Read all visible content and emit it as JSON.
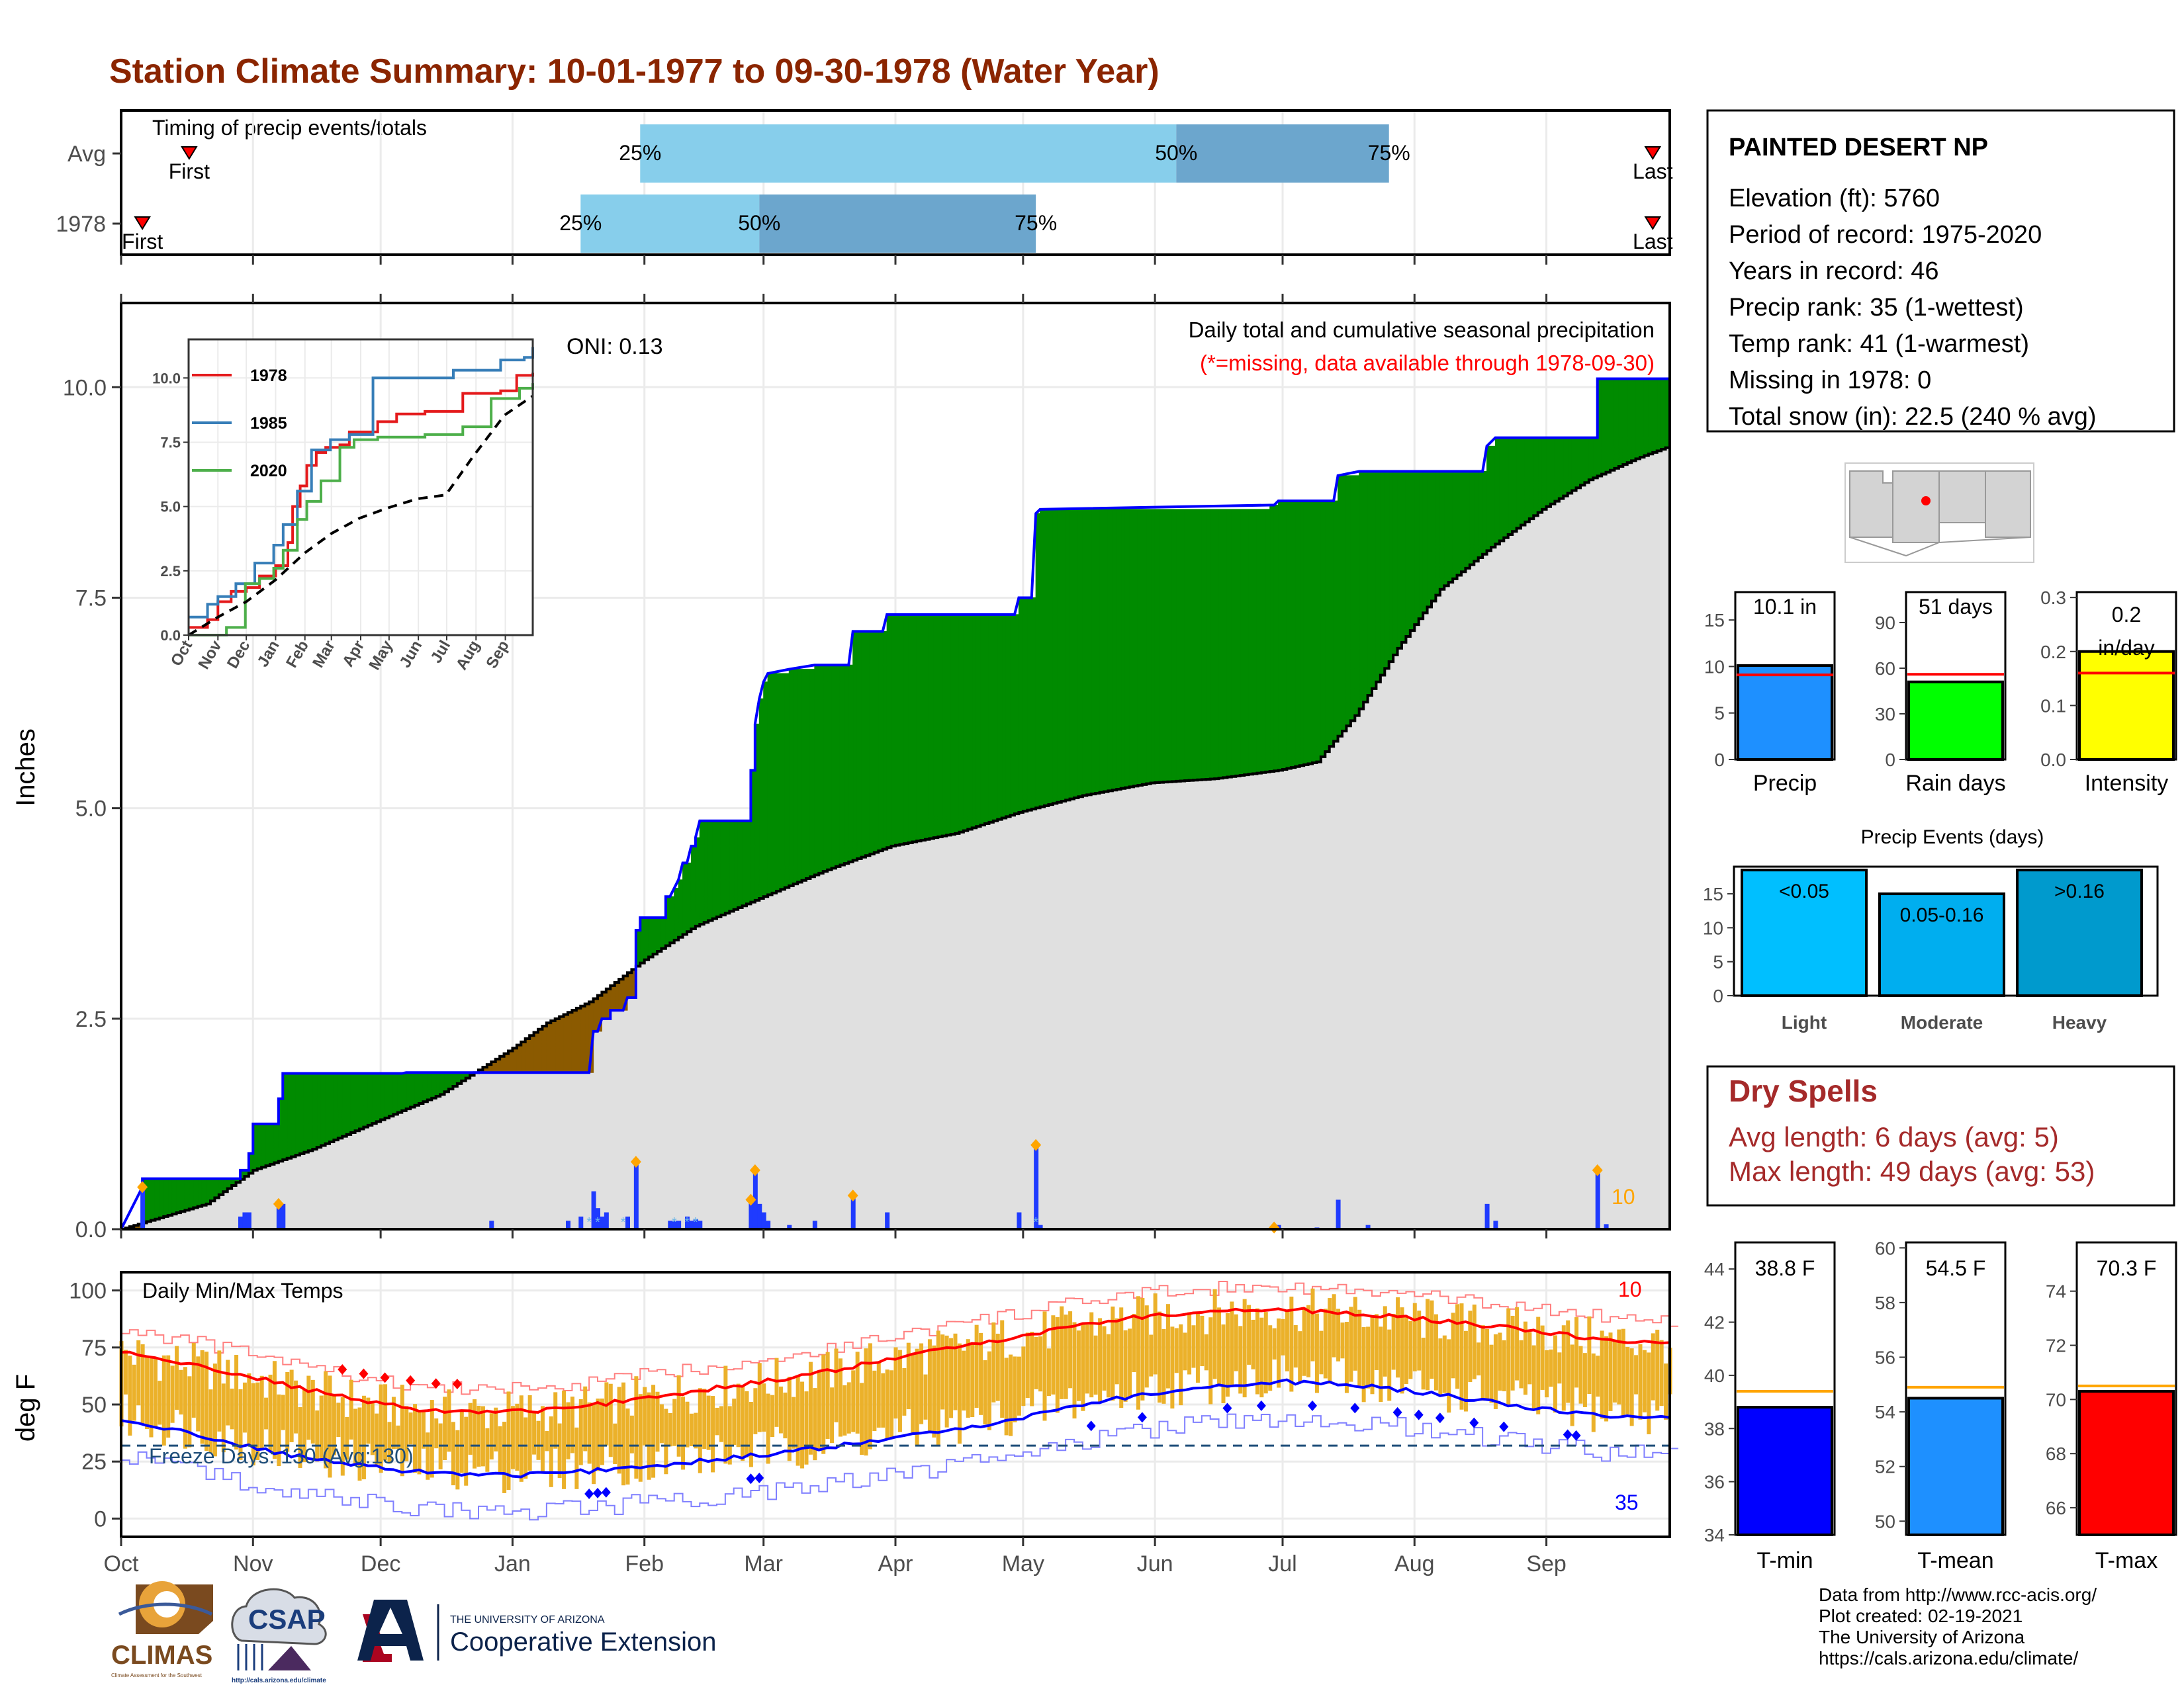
{
  "page": {
    "title": "Station Climate Summary: 10-01-1977 to 09-30-1978 (Water Year)",
    "title_color": "#8B2500",
    "footer_lines": [
      "Data from http://www.rcc-acis.org/",
      "Plot created: 02-19-2021",
      "The University of Arizona",
      "https://cals.arizona.edu/climate/"
    ],
    "logos": {
      "climas": "CLIMAS",
      "climas_sub": "Climate Assessment for the Southwest",
      "csap": "CSAP",
      "csap_url": "http://cals.arizona.edu/climate",
      "ua_small": "THE UNIVERSITY OF ARIZONA",
      "ua_big": "Cooperative Extension"
    }
  },
  "colors": {
    "light_blue": "#87CEEB",
    "mid_blue": "#6CA6CD",
    "green": "#008B00",
    "brown": "#8B5A00",
    "gray_fill": "#E0E0E0",
    "precip_blue": "#1F3BFF",
    "orange": "#FFA500",
    "temp_bar": "#EBB12A",
    "red": "#FF0000",
    "blue": "#0000FF"
  },
  "month_labels": [
    "Oct",
    "Nov",
    "Dec",
    "Jan",
    "Feb",
    "Mar",
    "Apr",
    "May",
    "Jun",
    "Jul",
    "Aug",
    "Sep"
  ],
  "timing": {
    "label": "Timing of precip events/totals",
    "rows": [
      {
        "name": "Avg",
        "first_label": "First",
        "last_label": "Last",
        "first_day": 16,
        "last_day": 360,
        "q25_day": 122,
        "q50_day": 248,
        "q75_day": 298
      },
      {
        "name": "1978",
        "first_label": "First",
        "last_label": "Last",
        "first_day": 5,
        "last_day": 360,
        "q25_day": 108,
        "q50_day": 150,
        "q75_day": 215
      }
    ],
    "pct_labels": [
      "25%",
      "50%",
      "75%"
    ]
  },
  "precip": {
    "ylabel": "Inches",
    "yticks": [
      "0.0",
      "2.5",
      "5.0",
      "7.5",
      "10.0"
    ],
    "ylim": [
      0,
      11
    ],
    "oni_label": "ONI: 0.13",
    "header": "Daily total and cumulative seasonal precipitation",
    "missing_note": "(*=missing, data available through 1978-09-30)",
    "extreme_count": "10",
    "cumulative_1978": [
      [
        0,
        0
      ],
      [
        5,
        0.5
      ],
      [
        5,
        0.6
      ],
      [
        28,
        0.6
      ],
      [
        28,
        0.7
      ],
      [
        30,
        0.7
      ],
      [
        30,
        0.9
      ],
      [
        31,
        0.9
      ],
      [
        31,
        1.25
      ],
      [
        37,
        1.25
      ],
      [
        37,
        1.55
      ],
      [
        38,
        1.55
      ],
      [
        38,
        1.85
      ],
      [
        66,
        1.85
      ],
      [
        67,
        1.86
      ],
      [
        108,
        1.86
      ],
      [
        110,
        1.86
      ],
      [
        111,
        2.35
      ],
      [
        112,
        2.35
      ],
      [
        113,
        2.5
      ],
      [
        115,
        2.5
      ],
      [
        115,
        2.6
      ],
      [
        118,
        2.6
      ],
      [
        119,
        2.75
      ],
      [
        121,
        2.75
      ],
      [
        121,
        3.55
      ],
      [
        122,
        3.55
      ],
      [
        122,
        3.7
      ],
      [
        128,
        3.7
      ],
      [
        128,
        3.95
      ],
      [
        129,
        3.95
      ],
      [
        130,
        4.05
      ],
      [
        131,
        4.15
      ],
      [
        132,
        4.35
      ],
      [
        133,
        4.35
      ],
      [
        134,
        4.55
      ],
      [
        135,
        4.55
      ],
      [
        135,
        4.65
      ],
      [
        136,
        4.85
      ],
      [
        148,
        4.85
      ],
      [
        148,
        5.45
      ],
      [
        149,
        5.45
      ],
      [
        149,
        6.0
      ],
      [
        150,
        6.3
      ],
      [
        151,
        6.5
      ],
      [
        152,
        6.6
      ],
      [
        157,
        6.65
      ],
      [
        163,
        6.7
      ],
      [
        171,
        6.7
      ],
      [
        172,
        7.1
      ],
      [
        179,
        7.1
      ],
      [
        180,
        7.3
      ],
      [
        210,
        7.3
      ],
      [
        211,
        7.5
      ],
      [
        214,
        7.5
      ],
      [
        215,
        8.5
      ],
      [
        216,
        8.55
      ],
      [
        270,
        8.6
      ],
      [
        271,
        8.6
      ],
      [
        272,
        8.65
      ],
      [
        285,
        8.65
      ],
      [
        286,
        8.95
      ],
      [
        291,
        9.0
      ],
      [
        320,
        9.0
      ],
      [
        321,
        9.3
      ],
      [
        323,
        9.4
      ],
      [
        342,
        9.4
      ],
      [
        347,
        9.4
      ],
      [
        347,
        10.1
      ],
      [
        360,
        10.1
      ],
      [
        364,
        10.1
      ]
    ],
    "average_cumulative": [
      [
        0,
        0
      ],
      [
        10,
        0.15
      ],
      [
        20,
        0.3
      ],
      [
        31,
        0.7
      ],
      [
        45,
        0.95
      ],
      [
        61,
        1.3
      ],
      [
        75,
        1.6
      ],
      [
        92,
        2.15
      ],
      [
        100,
        2.45
      ],
      [
        110,
        2.7
      ],
      [
        123,
        3.2
      ],
      [
        135,
        3.6
      ],
      [
        151,
        3.95
      ],
      [
        165,
        4.25
      ],
      [
        181,
        4.55
      ],
      [
        196,
        4.7
      ],
      [
        211,
        4.95
      ],
      [
        226,
        5.15
      ],
      [
        242,
        5.3
      ],
      [
        257,
        5.35
      ],
      [
        272,
        5.45
      ],
      [
        281,
        5.55
      ],
      [
        290,
        6.1
      ],
      [
        300,
        6.9
      ],
      [
        310,
        7.6
      ],
      [
        322,
        8.1
      ],
      [
        334,
        8.55
      ],
      [
        345,
        8.9
      ],
      [
        356,
        9.15
      ],
      [
        364,
        9.3
      ]
    ],
    "daily": [
      [
        5,
        0.5
      ],
      [
        28,
        0.15
      ],
      [
        29,
        0.2
      ],
      [
        30,
        0.2
      ],
      [
        37,
        0.3
      ],
      [
        38,
        0.3
      ],
      [
        87,
        0.1
      ],
      [
        105,
        0.1
      ],
      [
        108,
        0.15
      ],
      [
        111,
        0.45
      ],
      [
        112,
        0.25
      ],
      [
        113,
        0.15
      ],
      [
        114,
        0.2
      ],
      [
        119,
        0.15
      ],
      [
        121,
        0.8
      ],
      [
        129,
        0.1
      ],
      [
        130,
        0.1
      ],
      [
        131,
        0.1
      ],
      [
        133,
        0.15
      ],
      [
        134,
        0.1
      ],
      [
        135,
        0.12
      ],
      [
        136,
        0.1
      ],
      [
        148,
        0.35
      ],
      [
        149,
        0.7
      ],
      [
        150,
        0.3
      ],
      [
        151,
        0.2
      ],
      [
        152,
        0.1
      ],
      [
        157,
        0.05
      ],
      [
        163,
        0.1
      ],
      [
        172,
        0.4
      ],
      [
        180,
        0.2
      ],
      [
        211,
        0.2
      ],
      [
        215,
        1.0
      ],
      [
        216,
        0.05
      ],
      [
        272,
        0.05
      ],
      [
        281,
        0.02
      ],
      [
        286,
        0.35
      ],
      [
        293,
        0.05
      ],
      [
        321,
        0.3
      ],
      [
        323,
        0.1
      ],
      [
        347,
        0.7
      ],
      [
        349,
        0.06
      ]
    ],
    "extreme_days": [
      5,
      37,
      121,
      148,
      149,
      172,
      215,
      271,
      347
    ],
    "trace_days": [
      110,
      112,
      118,
      130,
      133,
      135,
      215
    ]
  },
  "inset": {
    "yticks": [
      "0.0",
      "2.5",
      "5.0",
      "7.5",
      "10.0"
    ],
    "series": [
      {
        "name": "1978",
        "color": "#E41A1C",
        "values": [
          [
            0,
            0.3
          ],
          [
            20,
            0.6
          ],
          [
            31,
            1.3
          ],
          [
            45,
            1.7
          ],
          [
            61,
            1.85
          ],
          [
            75,
            2.3
          ],
          [
            92,
            2.7
          ],
          [
            105,
            3.6
          ],
          [
            110,
            5.0
          ],
          [
            118,
            5.8
          ],
          [
            125,
            6.6
          ],
          [
            135,
            7.1
          ],
          [
            145,
            7.3
          ],
          [
            160,
            7.4
          ],
          [
            170,
            7.9
          ],
          [
            200,
            8.3
          ],
          [
            220,
            8.6
          ],
          [
            250,
            8.7
          ],
          [
            290,
            9.4
          ],
          [
            330,
            9.5
          ],
          [
            347,
            10.1
          ],
          [
            364,
            10.2
          ]
        ]
      },
      {
        "name": "1985",
        "color": "#377EB8",
        "values": [
          [
            0,
            0.7
          ],
          [
            20,
            1.2
          ],
          [
            31,
            1.5
          ],
          [
            50,
            2.0
          ],
          [
            70,
            2.8
          ],
          [
            90,
            3.5
          ],
          [
            100,
            4.3
          ],
          [
            115,
            5.6
          ],
          [
            130,
            7.2
          ],
          [
            150,
            7.6
          ],
          [
            170,
            7.8
          ],
          [
            195,
            10.0
          ],
          [
            230,
            10.0
          ],
          [
            280,
            10.3
          ],
          [
            330,
            10.7
          ],
          [
            355,
            10.8
          ],
          [
            364,
            11.2
          ]
        ]
      },
      {
        "name": "2020",
        "color": "#4DAF4A",
        "values": [
          [
            0,
            0.0
          ],
          [
            25,
            0.0
          ],
          [
            40,
            0.3
          ],
          [
            60,
            2.0
          ],
          [
            75,
            2.2
          ],
          [
            90,
            2.6
          ],
          [
            100,
            3.3
          ],
          [
            115,
            4.5
          ],
          [
            125,
            5.2
          ],
          [
            140,
            6.0
          ],
          [
            160,
            7.3
          ],
          [
            175,
            7.6
          ],
          [
            200,
            7.7
          ],
          [
            250,
            7.8
          ],
          [
            290,
            8.1
          ],
          [
            320,
            9.2
          ],
          [
            350,
            9.6
          ],
          [
            364,
            9.8
          ]
        ]
      }
    ],
    "average": [
      [
        0,
        0
      ],
      [
        31,
        0.7
      ],
      [
        61,
        1.3
      ],
      [
        92,
        2.15
      ],
      [
        123,
        3.2
      ],
      [
        151,
        3.95
      ],
      [
        181,
        4.55
      ],
      [
        211,
        4.95
      ],
      [
        242,
        5.3
      ],
      [
        272,
        5.45
      ],
      [
        300,
        6.9
      ],
      [
        334,
        8.55
      ],
      [
        364,
        9.3
      ]
    ]
  },
  "temps": {
    "ylabel": "deg F",
    "yticks": [
      "0",
      "25",
      "50",
      "75",
      "100"
    ],
    "ylim": [
      -8,
      108
    ],
    "panel_label": "Daily Min/Max Temps",
    "freeze_label": "Freeze Days: 130 (Avg:130)",
    "max_extreme_count": "10",
    "min_extreme_count": "35",
    "avg_max": [
      [
        0,
        73
      ],
      [
        15,
        68
      ],
      [
        31,
        62
      ],
      [
        45,
        56
      ],
      [
        61,
        50
      ],
      [
        75,
        47
      ],
      [
        92,
        47
      ],
      [
        105,
        48
      ],
      [
        123,
        53
      ],
      [
        135,
        56
      ],
      [
        151,
        60
      ],
      [
        165,
        64
      ],
      [
        181,
        70
      ],
      [
        196,
        75
      ],
      [
        211,
        80
      ],
      [
        226,
        85
      ],
      [
        242,
        89
      ],
      [
        257,
        91
      ],
      [
        272,
        92
      ],
      [
        287,
        90
      ],
      [
        303,
        88
      ],
      [
        318,
        85
      ],
      [
        334,
        82
      ],
      [
        349,
        78
      ],
      [
        364,
        77
      ]
    ],
    "avg_min": [
      [
        0,
        43
      ],
      [
        15,
        38
      ],
      [
        31,
        31
      ],
      [
        45,
        26
      ],
      [
        61,
        22
      ],
      [
        75,
        20
      ],
      [
        92,
        19
      ],
      [
        105,
        20
      ],
      [
        123,
        23
      ],
      [
        135,
        25
      ],
      [
        151,
        28
      ],
      [
        165,
        31
      ],
      [
        181,
        35
      ],
      [
        196,
        39
      ],
      [
        211,
        44
      ],
      [
        226,
        50
      ],
      [
        242,
        55
      ],
      [
        257,
        58
      ],
      [
        272,
        60
      ],
      [
        287,
        59
      ],
      [
        303,
        56
      ],
      [
        318,
        52
      ],
      [
        334,
        48
      ],
      [
        349,
        45
      ],
      [
        364,
        44
      ]
    ],
    "max_env_offsets": 10,
    "min_env_offsets": -16,
    "freeze_line": 32
  },
  "station": {
    "name": "PAINTED DESERT NP",
    "lines": [
      "Elevation (ft): 5760",
      "Period of record: 1975-2020",
      "Years in record: 46",
      "Precip rank: 35 (1-wettest)",
      "Temp rank: 41 (1-warmest)",
      "Missing in 1978: 0",
      "Total snow (in): 22.5 (240 % avg)"
    ]
  },
  "mini_bars": [
    {
      "label": "Precip",
      "value_label": "10.1 in",
      "value": 10.1,
      "avg": 9.1,
      "ymax": 18,
      "yticks": [
        "0",
        "5",
        "10",
        "15"
      ],
      "ytick_vals": [
        0,
        5,
        10,
        15
      ],
      "color": "#1E90FF"
    },
    {
      "label": "Rain days",
      "value_label": "51 days",
      "value": 51,
      "avg": 56,
      "ymax": 110,
      "yticks": [
        "0",
        "30",
        "60",
        "90"
      ],
      "ytick_vals": [
        0,
        30,
        60,
        90
      ],
      "color": "#00FF00"
    },
    {
      "label": "Intensity",
      "value_label": "0.2 in/day",
      "value": 0.2,
      "avg": 0.16,
      "ymax": 0.31,
      "yticks": [
        "0.0",
        "0.1",
        "0.2",
        "0.3"
      ],
      "ytick_vals": [
        0,
        0.1,
        0.2,
        0.3
      ],
      "color": "#FFFF00"
    }
  ],
  "events": {
    "title": "Precip Events (days)",
    "ymax": 19,
    "yticks": [
      "0",
      "5",
      "10",
      "15"
    ],
    "ytick_vals": [
      0,
      5,
      10,
      15
    ],
    "bars": [
      {
        "label": "Light",
        "value_label": "<0.05",
        "value": 18.5,
        "color": "#00BFFF"
      },
      {
        "label": "Moderate",
        "value_label": "0.05-0.16",
        "value": 15,
        "color": "#00AEEF"
      },
      {
        "label": "Heavy",
        "value_label": ">0.16",
        "value": 18.5,
        "color": "#009ACD"
      }
    ]
  },
  "dry_spells": {
    "title": "Dry Spells",
    "avg_line": "Avg length: 6 days (avg: 5)",
    "max_line": "Max length: 49 days (avg: 53)",
    "color": "#A52A2A"
  },
  "temp_bars": [
    {
      "label": "T-min",
      "value_label": "38.8 F",
      "value": 38.8,
      "avg": 39.4,
      "ymin": 34,
      "ymax": 45,
      "yticks": [
        "34",
        "36",
        "38",
        "40",
        "42",
        "44"
      ],
      "ytick_vals": [
        34,
        36,
        38,
        40,
        42,
        44
      ],
      "color": "#0000FF"
    },
    {
      "label": "T-mean",
      "value_label": "54.5 F",
      "value": 54.5,
      "avg": 54.9,
      "ymin": 49.5,
      "ymax": 60.2,
      "yticks": [
        "50",
        "52",
        "54",
        "56",
        "58",
        "60"
      ],
      "ytick_vals": [
        50,
        52,
        54,
        56,
        58,
        60
      ],
      "color": "#1E90FF"
    },
    {
      "label": "T-max",
      "value_label": "70.3 F",
      "value": 70.3,
      "avg": 70.5,
      "ymin": 65,
      "ymax": 75.8,
      "yticks": [
        "66",
        "68",
        "70",
        "72",
        "74"
      ],
      "ytick_vals": [
        66,
        68,
        70,
        72,
        74
      ],
      "color": "#FF0000"
    }
  ]
}
